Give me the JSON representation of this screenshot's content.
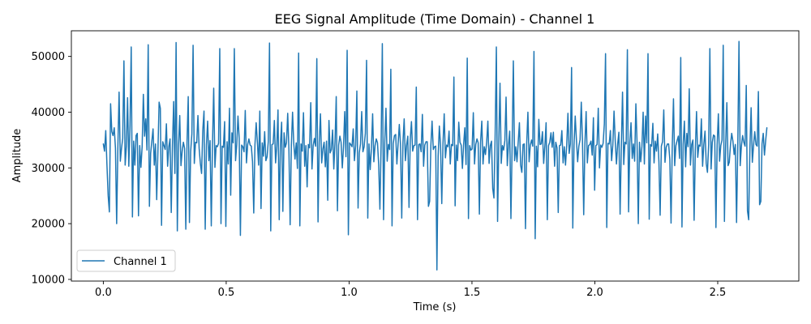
{
  "chart_data": {
    "type": "line",
    "title": "EEG Signal Amplitude (Time Domain) - Channel 1",
    "xlabel": "Time (s)",
    "ylabel": "Amplitude",
    "xlim": [
      -0.13,
      2.83
    ],
    "ylim": [
      9700,
      54600
    ],
    "xticks": [
      0,
      0.5,
      1,
      1.5,
      2,
      2.5
    ],
    "xtick_labels": [
      "0.0",
      "0.5",
      "1.0",
      "1.5",
      "2.0",
      "2.5"
    ],
    "yticks": [
      10000,
      20000,
      30000,
      40000,
      50000
    ],
    "ytick_labels": [
      "10000",
      "20000",
      "30000",
      "40000",
      "50000"
    ],
    "grid": false,
    "legend": {
      "position": "lower-left",
      "entries": [
        "Channel 1"
      ]
    },
    "sample_rate_hz": 256,
    "series": [
      {
        "name": "Channel 1",
        "color": "#1f77b4",
        "x_start": 0,
        "x_end": 2.7,
        "values": [
          34300,
          33000,
          36700,
          30500,
          25000,
          22100,
          41500,
          36500,
          35800,
          37200,
          33600,
          20000,
          33800,
          43600,
          31200,
          33500,
          35300,
          49200,
          30500,
          33900,
          42600,
          30300,
          37600,
          51700,
          21200,
          34800,
          30500,
          35800,
          36200,
          21400,
          34000,
          30100,
          33800,
          43200,
          35700,
          38800,
          33200,
          52100,
          23100,
          32600,
          34800,
          37000,
          30500,
          34300,
          24300,
          32900,
          41800,
          40700,
          19700,
          34700,
          34000,
          33300,
          37900,
          30300,
          33800,
          35200,
          22000,
          34100,
          41900,
          29000,
          52500,
          18700,
          34000,
          39400,
          30400,
          33000,
          34600,
          33500,
          19000,
          34600,
          42800,
          20200,
          32900,
          36100,
          52000,
          30800,
          34600,
          34500,
          39400,
          33500,
          30800,
          29000,
          36800,
          40200,
          19000,
          34100,
          38400,
          31300,
          34900,
          19600,
          34300,
          44300,
          30100,
          34000,
          33800,
          34400,
          51400,
          20000,
          33900,
          33700,
          38300,
          19500,
          34700,
          30700,
          40700,
          25100,
          36300,
          34500,
          51400,
          31300,
          34200,
          39300,
          35300,
          17900,
          34100,
          33800,
          32900,
          40300,
          30900,
          34200,
          35200,
          34100,
          33900,
          31100,
          21900,
          34200,
          38100,
          34600,
          30500,
          40200,
          22700,
          34500,
          32100,
          36500,
          31300,
          32000,
          34800,
          52400,
          18700,
          34200,
          34300,
          38500,
          30900,
          33900,
          40400,
          20700,
          34200,
          38200,
          22200,
          36300,
          33700,
          34500,
          39800,
          33300,
          19800,
          34100,
          40000,
          34300,
          31600,
          34500,
          29900,
          50600,
          19600,
          34300,
          33000,
          39900,
          30300,
          34000,
          26600,
          34200,
          33600,
          41700,
          29800,
          34000,
          35300,
          33900,
          49600,
          20300,
          34600,
          39700,
          30900,
          33400,
          34600,
          30200,
          34800,
          24200,
          38500,
          32700,
          33300,
          36800,
          29800,
          34700,
          42800,
          22300,
          34100,
          35700,
          34600,
          30000,
          33800,
          40100,
          32000,
          51100,
          18000,
          34500,
          34200,
          33800,
          37000,
          31300,
          34000,
          43800,
          22800,
          32700,
          34300,
          40100,
          32900,
          33800,
          36200,
          49300,
          21000,
          34300,
          29700,
          33500,
          39700,
          31100,
          34000,
          35200,
          34500,
          30600,
          22600,
          34300,
          52300,
          20700,
          34600,
          40700,
          31200,
          34200,
          33300,
          47700,
          19600,
          34400,
          35800,
          36000,
          30700,
          34300,
          37800,
          34100,
          21000,
          34600,
          38800,
          31300,
          34100,
          35700,
          22900,
          35000,
          38300,
          33000,
          34000,
          34100,
          44500,
          20700,
          34200,
          34300,
          32900,
          39600,
          30300,
          34100,
          34700,
          34700,
          23100,
          24000,
          34000,
          38400,
          33300,
          33800,
          33900,
          11700,
          32100,
          37500,
          34000,
          23600,
          34400,
          39700,
          31800,
          34100,
          33800,
          36600,
          30700,
          34200,
          34000,
          46300,
          23200,
          34100,
          31300,
          38200,
          34600,
          34100,
          29900,
          34200,
          37200,
          30600,
          49700,
          20900,
          34000,
          33200,
          33400,
          39900,
          30700,
          34200,
          35200,
          34500,
          21700,
          34700,
          38400,
          30700,
          33800,
          32400,
          34600,
          38400,
          30800,
          34000,
          34800,
          26300,
          24600,
          35900,
          51700,
          20400,
          34400,
          45200,
          30800,
          34000,
          33200,
          34900,
          42700,
          30400,
          34200,
          36600,
          20900,
          33900,
          49200,
          31300,
          33800,
          31100,
          34600,
          38100,
          30500,
          29200,
          34200,
          34300,
          19100,
          34300,
          40000,
          31100,
          34100,
          35000,
          33900,
          50900,
          17300,
          33900,
          30200,
          38700,
          34200,
          34300,
          36500,
          30800,
          34000,
          38100,
          20700,
          34000,
          34600,
          36300,
          33700,
          36400,
          30300,
          34600,
          33600,
          22000,
          34000,
          34100,
          36700,
          30900,
          33800,
          30500,
          34100,
          39800,
          32600,
          34300,
          48000,
          19200,
          34000,
          39300,
          35000,
          31100,
          33900,
          35100,
          41800,
          34700,
          21600,
          34400,
          40100,
          30900,
          34000,
          34200,
          34800,
          32300,
          39000,
          26000,
          34000,
          34200,
          40700,
          30000,
          34100,
          33700,
          34400,
          37900,
          50500,
          19300,
          34400,
          34300,
          36700,
          31300,
          34100,
          40200,
          34800,
          30700,
          34300,
          36400,
          21700,
          33700,
          43600,
          30600,
          34600,
          34300,
          51200,
          22100,
          34500,
          38100,
          31700,
          34300,
          31200,
          41500,
          34300,
          20000,
          34600,
          31100,
          33900,
          40000,
          30700,
          39300,
          34500,
          50500,
          20800,
          34200,
          33900,
          38000,
          30900,
          34800,
          33000,
          36100,
          31100,
          21500,
          33900,
          34700,
          40400,
          31000,
          33700,
          34300,
          34300,
          31500,
          20100,
          33900,
          42400,
          30400,
          34000,
          34900,
          35700,
          31700,
          49800,
          19400,
          34300,
          38400,
          30200,
          36200,
          33800,
          44200,
          30500,
          34200,
          35000,
          20600,
          33200,
          40100,
          31900,
          34100,
          33900,
          38800,
          30300,
          34200,
          36600,
          30800,
          29200,
          34200,
          51400,
          29800,
          34600,
          35900,
          35700,
          19300,
          34200,
          39700,
          31200,
          34000,
          35000,
          52000,
          20400,
          34000,
          41700,
          30400,
          31000,
          34200,
          36200,
          34800,
          32400,
          34200,
          20200,
          33800,
          52700,
          30400,
          33900,
          35800,
          34600,
          33900,
          44800,
          22300,
          20700,
          33500,
          40800,
          31000,
          34000,
          36500,
          34200,
          33900,
          43700,
          23400,
          24000,
          34300,
          36200,
          32300,
          34900,
          37200
        ]
      }
    ]
  }
}
